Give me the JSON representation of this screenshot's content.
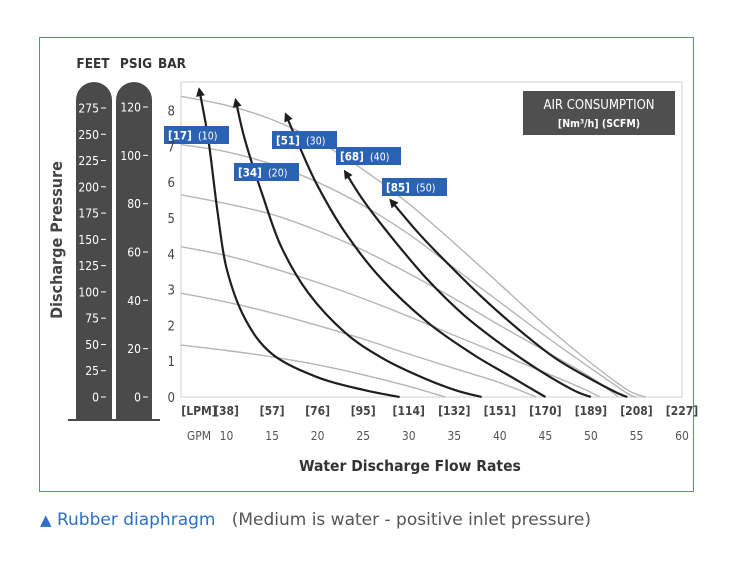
{
  "chart_data": {
    "type": "line",
    "ylabel": "Discharge Pressure",
    "xlabel": "Water Discharge Flow Rates",
    "unit_headers": [
      "FEET",
      "PSIG",
      "BAR"
    ],
    "feet_ticks": [
      "275",
      "250",
      "225",
      "200",
      "175",
      "150",
      "125",
      "100",
      "75",
      "50",
      "25",
      "0"
    ],
    "psig_ticks": [
      "120",
      "100",
      "80",
      "60",
      "40",
      "20",
      "0"
    ],
    "bar_ticks": [
      "0",
      "1",
      "2",
      "3",
      "4",
      "5",
      "6",
      "7",
      "8"
    ],
    "lpm_ticks": [
      "[LPM]",
      "[38]",
      "[57]",
      "[76]",
      "[95]",
      "[114]",
      "[132]",
      "[151]",
      "[170]",
      "[189]",
      "[208]",
      "[227]"
    ],
    "gpm_ticks": [
      "GPM",
      "10",
      "15",
      "20",
      "25",
      "30",
      "35",
      "40",
      "45",
      "50",
      "55",
      "60"
    ],
    "xlim": [
      5,
      60
    ],
    "ylim": [
      0,
      8.8
    ],
    "air_box": {
      "title": "AIR CONSUMPTION",
      "units": "[Nm³/h] (SCFM)"
    },
    "performance_curves": [
      {
        "label_nm": "[17]",
        "label_scfm": "(10)",
        "points": [
          [
            7,
            8.6
          ],
          [
            8,
            7.2
          ],
          [
            9,
            5.2
          ],
          [
            10,
            3.6
          ],
          [
            12,
            2.2
          ],
          [
            15,
            1.2
          ],
          [
            20,
            0.55
          ],
          [
            25,
            0.2
          ],
          [
            29,
            0
          ]
        ]
      },
      {
        "label_nm": "[34]",
        "label_scfm": "(20)",
        "points": [
          [
            11,
            8.3
          ],
          [
            12,
            7.2
          ],
          [
            14,
            5.6
          ],
          [
            16,
            4.2
          ],
          [
            19,
            2.9
          ],
          [
            23,
            1.8
          ],
          [
            27,
            1.1
          ],
          [
            31,
            0.6
          ],
          [
            35,
            0.2
          ],
          [
            38,
            0
          ]
        ]
      },
      {
        "label_nm": "[51]",
        "label_scfm": "(30)",
        "points": [
          [
            16.5,
            7.9
          ],
          [
            18,
            7
          ],
          [
            20,
            5.9
          ],
          [
            23,
            4.6
          ],
          [
            27,
            3.3
          ],
          [
            32,
            2.1
          ],
          [
            37,
            1.2
          ],
          [
            41,
            0.6
          ],
          [
            45,
            0
          ]
        ]
      },
      {
        "label_nm": "[68]",
        "label_scfm": "(40)",
        "points": [
          [
            23,
            6.3
          ],
          [
            25,
            5.5
          ],
          [
            28,
            4.5
          ],
          [
            32,
            3.3
          ],
          [
            36,
            2.3
          ],
          [
            40,
            1.5
          ],
          [
            44,
            0.8
          ],
          [
            48,
            0.2
          ],
          [
            50,
            0
          ]
        ]
      },
      {
        "label_nm": "[85]",
        "label_scfm": "(50)",
        "points": [
          [
            28,
            5.5
          ],
          [
            31,
            4.6
          ],
          [
            34,
            3.8
          ],
          [
            38,
            2.8
          ],
          [
            42,
            1.9
          ],
          [
            46,
            1.1
          ],
          [
            50,
            0.5
          ],
          [
            53,
            0.1
          ],
          [
            54,
            0
          ]
        ]
      }
    ],
    "pressure_curves": [
      {
        "points": [
          [
            5,
            1.45
          ],
          [
            10,
            1.3
          ],
          [
            15,
            1.12
          ],
          [
            20,
            0.9
          ],
          [
            25,
            0.62
          ],
          [
            30,
            0.3
          ],
          [
            34,
            0
          ]
        ]
      },
      {
        "points": [
          [
            5,
            2.9
          ],
          [
            10,
            2.65
          ],
          [
            15,
            2.35
          ],
          [
            20,
            2
          ],
          [
            25,
            1.62
          ],
          [
            30,
            1.2
          ],
          [
            35,
            0.8
          ],
          [
            40,
            0.4
          ],
          [
            44,
            0
          ]
        ]
      },
      {
        "points": [
          [
            5,
            4.2
          ],
          [
            10,
            3.95
          ],
          [
            15,
            3.6
          ],
          [
            20,
            3.2
          ],
          [
            25,
            2.75
          ],
          [
            30,
            2.25
          ],
          [
            35,
            1.72
          ],
          [
            40,
            1.2
          ],
          [
            45,
            0.68
          ],
          [
            49,
            0.25
          ],
          [
            51,
            0
          ]
        ]
      },
      {
        "points": [
          [
            5,
            5.65
          ],
          [
            10,
            5.4
          ],
          [
            15,
            5.1
          ],
          [
            20,
            4.65
          ],
          [
            25,
            4.1
          ],
          [
            30,
            3.45
          ],
          [
            35,
            2.75
          ],
          [
            40,
            2
          ],
          [
            45,
            1.28
          ],
          [
            50,
            0.55
          ],
          [
            53,
            0
          ]
        ]
      },
      {
        "points": [
          [
            5,
            7.05
          ],
          [
            10,
            6.85
          ],
          [
            15,
            6.5
          ],
          [
            20,
            6
          ],
          [
            25,
            5.35
          ],
          [
            30,
            4.55
          ],
          [
            35,
            3.6
          ],
          [
            40,
            2.65
          ],
          [
            45,
            1.7
          ],
          [
            50,
            0.8
          ],
          [
            54,
            0.1
          ],
          [
            55,
            0
          ]
        ]
      },
      {
        "points": [
          [
            5,
            8.4
          ],
          [
            10,
            8.15
          ],
          [
            15,
            7.75
          ],
          [
            20,
            7.15
          ],
          [
            25,
            6.35
          ],
          [
            30,
            5.4
          ],
          [
            35,
            4.3
          ],
          [
            40,
            3.15
          ],
          [
            45,
            2
          ],
          [
            50,
            0.95
          ],
          [
            54,
            0.2
          ],
          [
            56,
            0
          ]
        ]
      }
    ]
  },
  "caption": {
    "marker": "▲",
    "main": "Rubber diaphragm",
    "note": "(Medium is water -  positive inlet pressure)"
  }
}
